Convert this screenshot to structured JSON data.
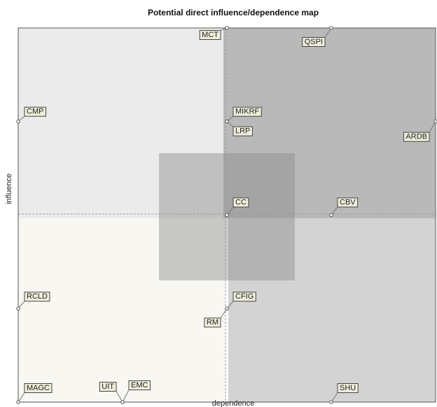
{
  "chart_data": {
    "type": "scatter",
    "title": "Potential direct influence/dependence map",
    "xlabel": "dependence",
    "ylabel": "influence",
    "labels": [
      "MCT",
      "QSPI",
      "CMP",
      "MIKRF",
      "LRP",
      "ARDB",
      "CC",
      "CBV",
      "RCLD",
      "CFIG",
      "RM",
      "MAGC",
      "UIT",
      "EMC",
      "SHU"
    ],
    "x": [
      50,
      75,
      0,
      50,
      50,
      100,
      50,
      75,
      0,
      50,
      50,
      0,
      25,
      25,
      75
    ],
    "values": [
      100,
      100,
      75,
      75,
      75,
      75,
      50,
      50,
      25,
      25,
      25,
      0,
      0,
      0,
      0
    ],
    "xlim": [
      0,
      100
    ],
    "ylim": [
      0,
      100
    ]
  }
}
